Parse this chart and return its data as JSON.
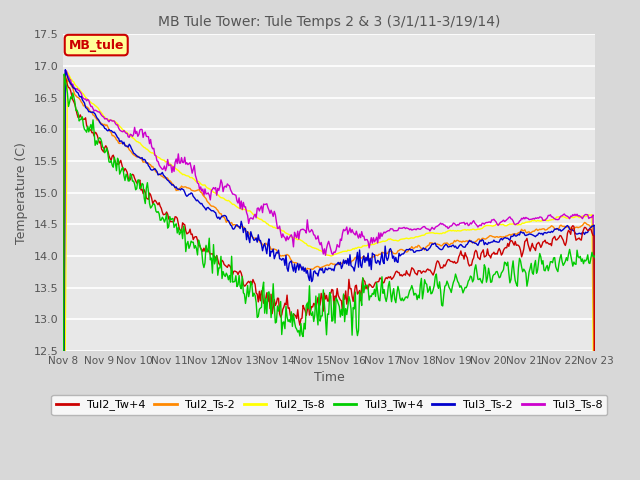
{
  "title": "MB Tule Tower: Tule Temps 2 & 3 (3/1/11-3/19/14)",
  "xlabel": "Time",
  "ylabel": "Temperature (C)",
  "ylim": [
    12.5,
    17.5
  ],
  "yticks": [
    12.5,
    13.0,
    13.5,
    14.0,
    14.5,
    15.0,
    15.5,
    16.0,
    16.5,
    17.0,
    17.5
  ],
  "x_labels": [
    "Nov 8",
    "Nov 9",
    "Nov 10",
    "Nov 11",
    "Nov 12",
    "Nov 13",
    "Nov 14",
    "Nov 15",
    "Nov 16",
    "Nov 17",
    "Nov 18",
    "Nov 19",
    "Nov 20",
    "Nov 21",
    "Nov 22",
    "Nov 23"
  ],
  "series_colors": {
    "Tul2_Tw+4": "#cc0000",
    "Tul2_Ts-2": "#ff8800",
    "Tul2_Ts-8": "#ffff00",
    "Tul3_Tw+4": "#00cc00",
    "Tul3_Ts-2": "#0000cc",
    "Tul3_Ts-8": "#cc00cc"
  },
  "background_color": "#d8d8d8",
  "plot_bg_color": "#e8e8e8",
  "legend_label": "MB_tule",
  "legend_bg": "#ffff99",
  "legend_border": "#cc0000",
  "title_color": "#555555",
  "axis_label_color": "#555555",
  "tick_color": "#555555",
  "n_points": 500
}
